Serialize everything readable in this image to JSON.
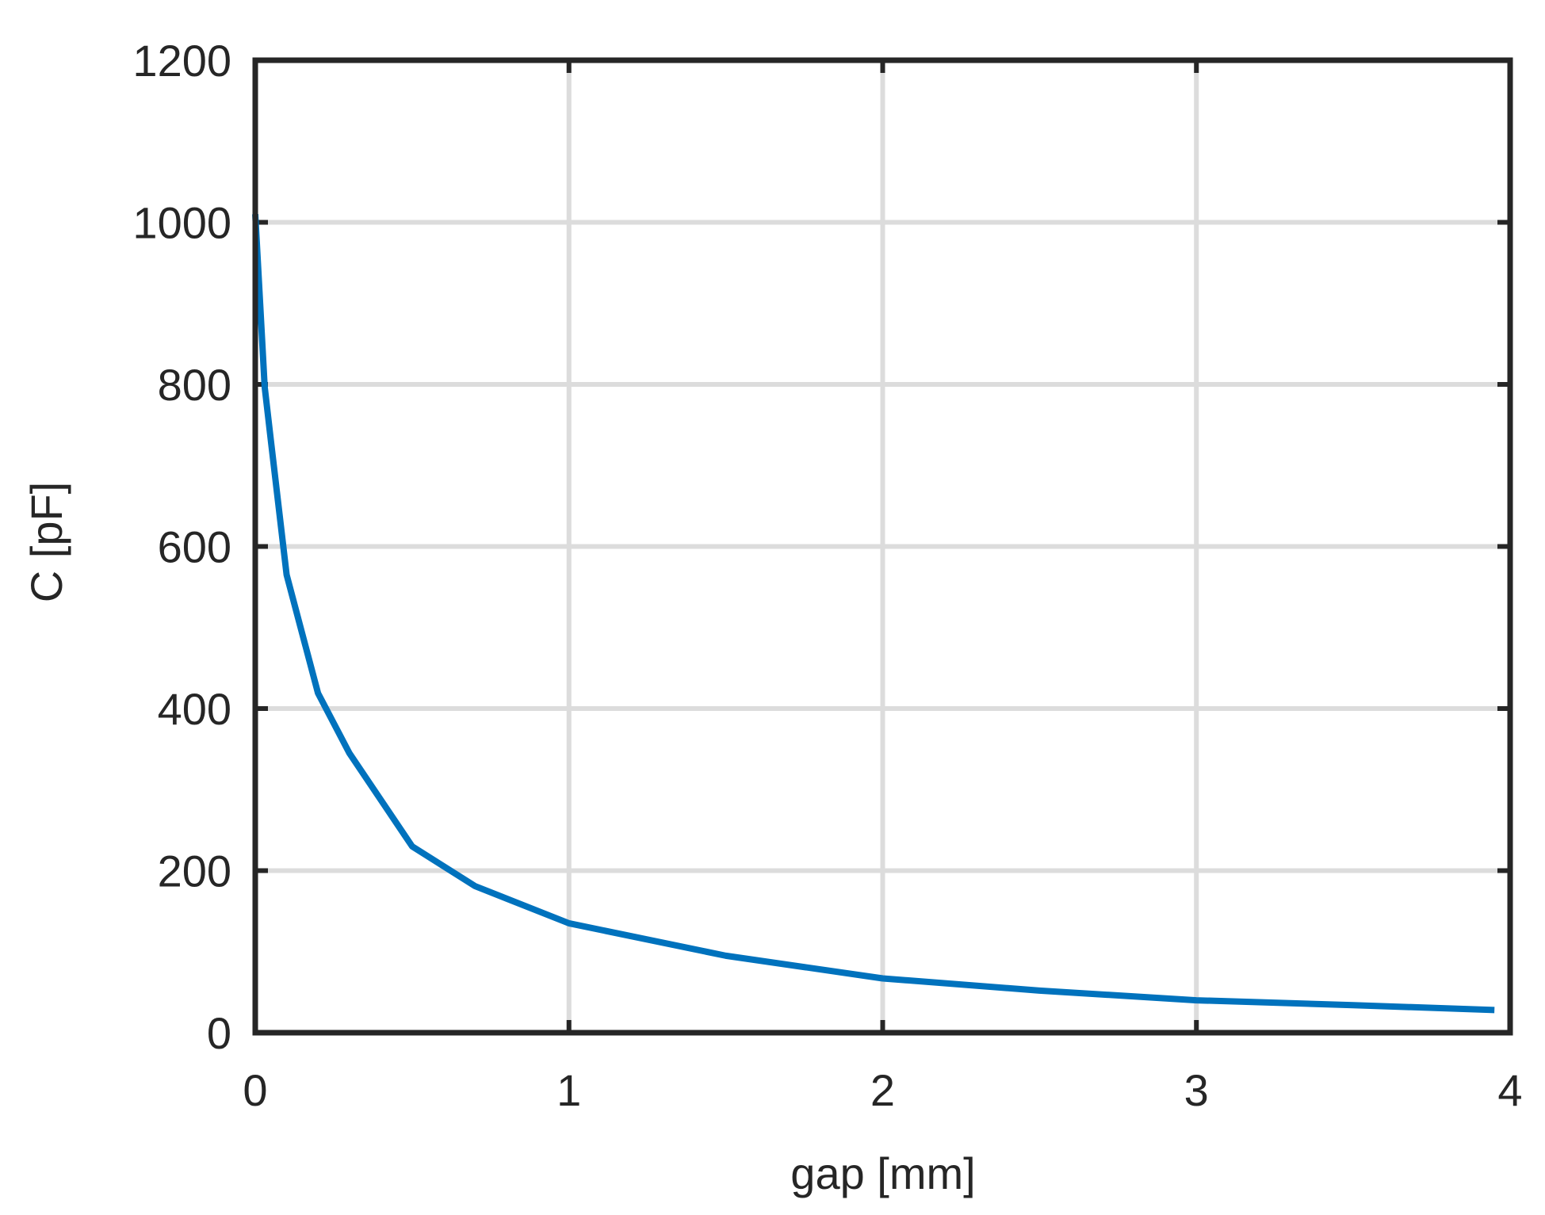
{
  "chart_data": {
    "type": "line",
    "x_label": "gap [mm]",
    "y_label": "C [pF]",
    "x": [
      0,
      0.03,
      0.05,
      0.1,
      0.2,
      0.3,
      0.5,
      0.7,
      1,
      1.5,
      2,
      2.5,
      3,
      3.5,
      3.95
    ],
    "series": [
      {
        "name": "C",
        "color": "#0072bd",
        "values": [
          1010,
          797,
          730,
          565,
          419,
          345,
          230,
          181,
          135,
          95,
          67,
          52,
          40,
          34,
          28
        ]
      }
    ],
    "xlim": [
      0,
      4
    ],
    "xticks": [
      0,
      1,
      2,
      3,
      4
    ],
    "ylim": [
      0,
      1200
    ],
    "yticks": [
      0,
      200,
      400,
      600,
      800,
      1000,
      1200
    ],
    "grid": true
  }
}
